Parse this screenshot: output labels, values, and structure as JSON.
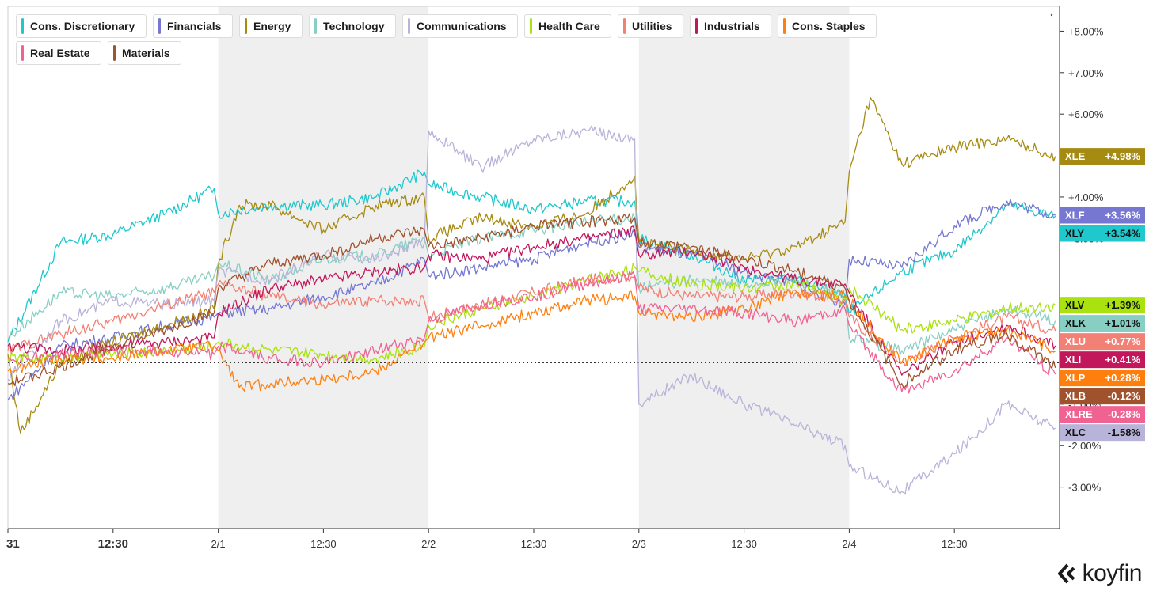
{
  "brand": {
    "name": "koyfin"
  },
  "chart_data": {
    "type": "line",
    "y_unit": "%",
    "ylim": [
      -4.0,
      8.6
    ],
    "y_ticks": [
      "+8.00%",
      "+7.00%",
      "+6.00%",
      "+4.00%",
      "+3.00%",
      "-1.00%",
      "-2.00%",
      "-3.00%"
    ],
    "y_tick_values": [
      8,
      7,
      6,
      4,
      3,
      -1,
      -2,
      -3
    ],
    "x_tick_labels": [
      "31",
      "12:30",
      "2/1",
      "12:30",
      "2/2",
      "12:30",
      "2/3",
      "12:30",
      "2/4",
      "12:30"
    ],
    "x_tick_positions": [
      0,
      0.5,
      1,
      1.5,
      2,
      2.5,
      3,
      3.5,
      4,
      4.5
    ],
    "x_range": [
      0,
      5
    ],
    "zero_line": true,
    "shaded_sessions": [
      [
        1,
        2
      ],
      [
        3,
        4
      ]
    ],
    "legend_placement": "top-left",
    "series": [
      {
        "name": "Cons. Discretionary",
        "ticker": "XLY",
        "color": "#1ec8cc",
        "last_label": "+3.54%",
        "x": [
          0,
          0.25,
          0.5,
          0.75,
          0.98,
          1,
          1.25,
          1.5,
          1.75,
          1.98,
          2,
          2.25,
          2.5,
          2.75,
          2.98,
          3,
          3.25,
          3.5,
          3.75,
          3.98,
          4,
          4.25,
          4.5,
          4.75,
          4.98
        ],
        "y": [
          0.5,
          2.9,
          3.1,
          3.6,
          4.2,
          3.6,
          3.8,
          3.8,
          4.0,
          4.6,
          4.3,
          4.0,
          3.7,
          3.9,
          3.9,
          3.0,
          2.6,
          2.0,
          2.0,
          1.6,
          1.2,
          2.2,
          2.7,
          3.8,
          3.54
        ]
      },
      {
        "name": "Financials",
        "ticker": "XLF",
        "color": "#7577d0",
        "last_label": "+3.56%",
        "x": [
          0,
          0.25,
          0.5,
          0.75,
          0.98,
          1,
          1.25,
          1.5,
          1.75,
          1.98,
          2,
          2.25,
          2.5,
          2.75,
          2.98,
          3,
          3.25,
          3.5,
          3.75,
          3.98,
          4,
          4.25,
          4.5,
          4.75,
          4.98
        ],
        "y": [
          -0.9,
          0.4,
          0.6,
          0.9,
          1.1,
          1.2,
          1.3,
          1.6,
          1.9,
          2.5,
          2.1,
          2.3,
          2.5,
          2.9,
          3.1,
          2.8,
          2.6,
          2.2,
          1.9,
          1.4,
          2.5,
          2.3,
          3.3,
          3.9,
          3.56
        ]
      },
      {
        "name": "Energy",
        "ticker": "XLE",
        "color": "#a68b12",
        "last_label": "+4.98%",
        "x": [
          0,
          0.06,
          0.25,
          0.5,
          0.75,
          0.98,
          1,
          1.1,
          1.25,
          1.5,
          1.75,
          1.98,
          2,
          2.25,
          2.5,
          2.75,
          2.98,
          3,
          3.25,
          3.5,
          3.75,
          3.98,
          4.0,
          4.1,
          4.25,
          4.5,
          4.75,
          4.98
        ],
        "y": [
          0.2,
          -1.7,
          0.0,
          0.5,
          0.9,
          1.3,
          2.4,
          3.8,
          3.8,
          3.2,
          3.8,
          4.0,
          3.0,
          3.5,
          3.3,
          3.6,
          4.5,
          2.9,
          2.7,
          2.5,
          2.8,
          3.4,
          4.6,
          6.4,
          4.8,
          5.2,
          5.4,
          4.98
        ]
      },
      {
        "name": "Technology",
        "ticker": "XLK",
        "color": "#88cfc3",
        "last_label": "+1.01%",
        "x": [
          0,
          0.25,
          0.5,
          0.75,
          0.98,
          1,
          1.25,
          1.5,
          1.75,
          1.98,
          2,
          2.25,
          2.5,
          2.75,
          2.98,
          3,
          3.25,
          3.5,
          3.75,
          3.98,
          4,
          4.25,
          4.5,
          4.75,
          4.98
        ],
        "y": [
          0.6,
          1.7,
          1.6,
          1.8,
          2.1,
          2.4,
          2.0,
          2.5,
          2.6,
          3.0,
          2.6,
          3.0,
          3.2,
          3.4,
          3.5,
          1.8,
          2.0,
          1.9,
          2.0,
          1.6,
          0.6,
          0.3,
          0.8,
          1.3,
          1.01
        ]
      },
      {
        "name": "Communications",
        "ticker": "XLC",
        "color": "#b8b3d8",
        "last_label": "-1.58%",
        "x": [
          0,
          0.25,
          0.5,
          0.75,
          0.98,
          1,
          1.25,
          1.5,
          1.75,
          1.98,
          2,
          2.25,
          2.5,
          2.75,
          2.98,
          3,
          3.25,
          3.5,
          3.75,
          3.98,
          4,
          4.25,
          4.5,
          4.75,
          4.98
        ],
        "y": [
          -0.4,
          1.0,
          1.5,
          1.4,
          1.5,
          2.2,
          2.0,
          2.6,
          2.5,
          2.9,
          5.6,
          4.7,
          5.4,
          5.6,
          5.4,
          -1.0,
          -0.3,
          -1.0,
          -1.5,
          -2.0,
          -2.5,
          -3.1,
          -2.2,
          -1.0,
          -1.58
        ]
      },
      {
        "name": "Health Care",
        "ticker": "XLV",
        "color": "#a9e20e",
        "last_label": "+1.39%",
        "x": [
          0,
          0.25,
          0.5,
          0.75,
          0.98,
          1,
          1.25,
          1.5,
          1.75,
          1.98,
          2,
          2.25,
          2.5,
          2.75,
          2.98,
          3,
          3.25,
          3.5,
          3.75,
          3.98,
          4,
          4.25,
          4.5,
          4.75,
          4.98
        ],
        "y": [
          0.1,
          0.1,
          0.2,
          0.3,
          0.4,
          0.5,
          0.3,
          0.2,
          0.1,
          0.4,
          0.9,
          1.3,
          1.6,
          2.0,
          2.3,
          2.2,
          1.9,
          1.8,
          1.9,
          1.5,
          1.8,
          0.8,
          1.0,
          1.3,
          1.39
        ]
      },
      {
        "name": "Utilities",
        "ticker": "XLU",
        "color": "#f28074",
        "last_label": "+0.77%",
        "x": [
          0,
          0.25,
          0.5,
          0.75,
          0.98,
          1,
          1.25,
          1.5,
          1.75,
          1.98,
          2,
          2.25,
          2.5,
          2.75,
          2.98,
          3,
          3.25,
          3.5,
          3.75,
          3.98,
          4,
          4.25,
          4.5,
          4.75,
          4.98
        ],
        "y": [
          0.3,
          0.7,
          1.0,
          1.4,
          1.7,
          1.9,
          1.6,
          1.4,
          1.5,
          1.5,
          1.1,
          1.4,
          1.7,
          2.0,
          2.1,
          1.8,
          1.6,
          1.6,
          1.7,
          1.5,
          1.1,
          0.0,
          0.6,
          1.1,
          0.77
        ]
      },
      {
        "name": "Industrials",
        "ticker": "XLI",
        "color": "#c2185b",
        "last_label": "+0.41%",
        "x": [
          0,
          0.25,
          0.5,
          0.75,
          0.98,
          1,
          1.25,
          1.5,
          1.75,
          1.98,
          2,
          2.25,
          2.5,
          2.75,
          2.98,
          3,
          3.25,
          3.5,
          3.75,
          3.98,
          4,
          4.25,
          4.5,
          4.75,
          4.98
        ],
        "y": [
          0.4,
          0.3,
          0.4,
          0.5,
          0.6,
          1.2,
          1.8,
          2.0,
          2.2,
          2.3,
          2.6,
          2.5,
          2.8,
          3.0,
          3.2,
          2.6,
          2.7,
          2.3,
          2.0,
          1.9,
          1.7,
          -0.3,
          0.5,
          0.9,
          0.41
        ]
      },
      {
        "name": "Cons. Staples",
        "ticker": "XLP",
        "color": "#ff7f0e",
        "last_label": "+0.28%",
        "x": [
          0,
          0.25,
          0.5,
          0.75,
          0.98,
          1,
          1.1,
          1.25,
          1.5,
          1.75,
          1.98,
          2,
          2.25,
          2.5,
          2.75,
          2.98,
          3,
          3.25,
          3.5,
          3.75,
          3.98,
          4,
          4.25,
          4.5,
          4.75,
          4.98
        ],
        "y": [
          -0.2,
          0.1,
          0.1,
          0.3,
          0.4,
          0.3,
          -0.6,
          -0.5,
          -0.4,
          -0.2,
          0.5,
          0.6,
          0.9,
          1.2,
          1.5,
          1.6,
          1.2,
          1.1,
          1.3,
          1.7,
          1.6,
          1.5,
          0.0,
          0.6,
          0.8,
          0.28
        ]
      },
      {
        "name": "Real Estate",
        "ticker": "XLRE",
        "color": "#f06292",
        "last_label": "-0.28%",
        "x": [
          0,
          0.25,
          0.5,
          0.75,
          0.98,
          1,
          1.25,
          1.5,
          1.75,
          1.98,
          2,
          2.25,
          2.5,
          2.75,
          2.98,
          3,
          3.25,
          3.5,
          3.75,
          3.98,
          4,
          4.25,
          4.5,
          4.75,
          4.98
        ],
        "y": [
          0.1,
          0.2,
          0.3,
          0.3,
          0.2,
          0.4,
          0.1,
          0.0,
          0.3,
          0.6,
          1.0,
          1.4,
          1.6,
          1.9,
          2.1,
          1.3,
          1.3,
          1.2,
          1.0,
          1.3,
          0.9,
          -0.7,
          -0.2,
          0.6,
          -0.28
        ]
      },
      {
        "name": "Materials",
        "ticker": "XLB",
        "color": "#a0522d",
        "last_label": "-0.12%",
        "x": [
          0,
          0.25,
          0.5,
          0.75,
          0.98,
          1,
          1.25,
          1.5,
          1.75,
          1.98,
          2,
          2.25,
          2.5,
          2.75,
          2.98,
          3,
          3.25,
          3.5,
          3.75,
          3.98,
          4,
          4.25,
          4.5,
          4.75,
          4.98
        ],
        "y": [
          -0.5,
          -0.1,
          0.4,
          0.8,
          1.2,
          1.8,
          2.4,
          2.6,
          3.0,
          3.2,
          2.8,
          3.0,
          3.3,
          3.4,
          3.5,
          2.9,
          2.8,
          2.5,
          2.2,
          1.8,
          1.5,
          -0.5,
          0.3,
          0.7,
          -0.12
        ]
      }
    ]
  }
}
